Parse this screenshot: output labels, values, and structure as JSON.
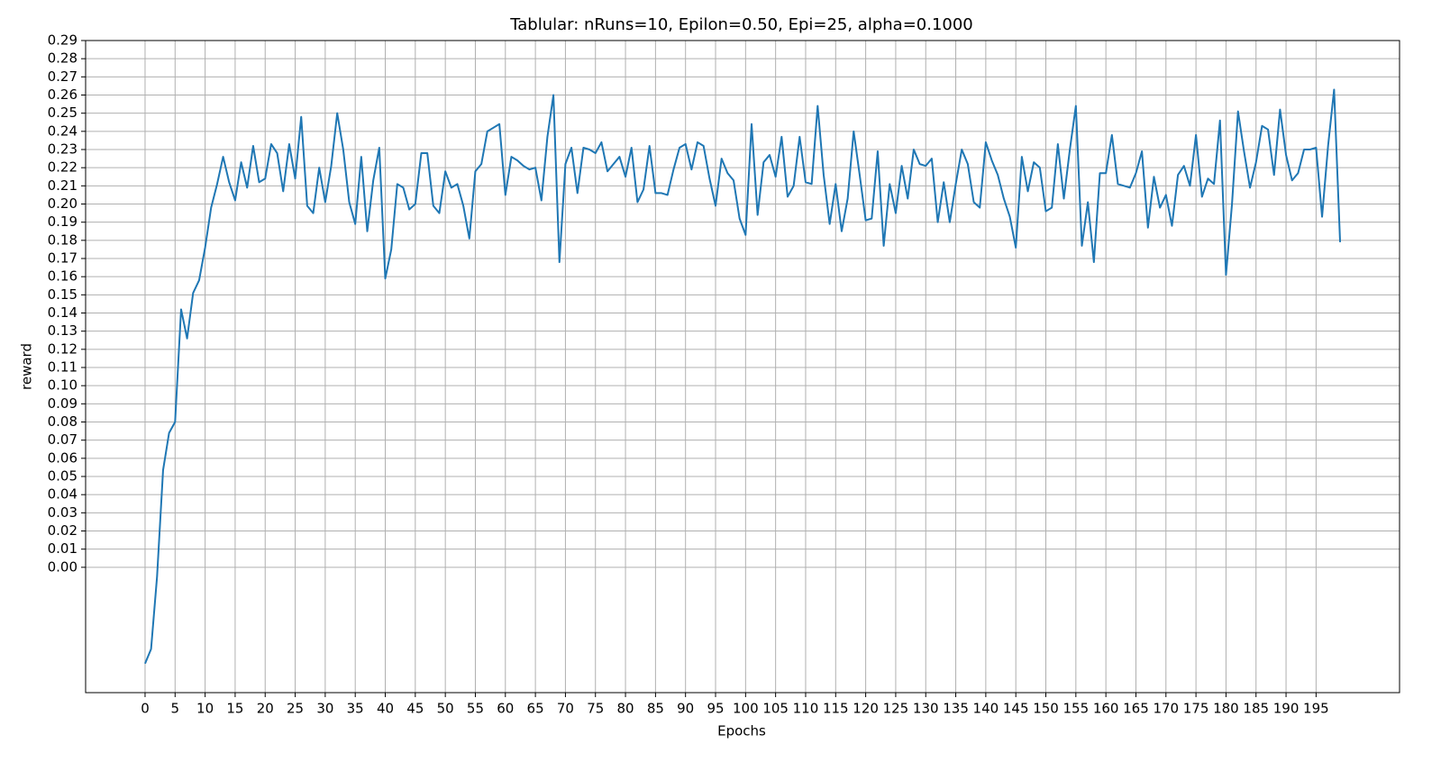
{
  "chart_data": {
    "type": "line",
    "title": "Tablular: nRuns=10, Epilon=0.50, Epi=25, alpha=0.1000",
    "xlabel": "Epochs",
    "ylabel": "reward",
    "color": "#1f77b4",
    "grid": true,
    "xlim": [
      -9.9,
      208.9
    ],
    "ylim": [
      -0.069,
      0.29
    ],
    "xticks": [
      0,
      5,
      10,
      15,
      20,
      25,
      30,
      35,
      40,
      45,
      50,
      55,
      60,
      65,
      70,
      75,
      80,
      85,
      90,
      95,
      100,
      105,
      110,
      115,
      120,
      125,
      130,
      135,
      140,
      145,
      150,
      155,
      160,
      165,
      170,
      175,
      180,
      185,
      190,
      195
    ],
    "yticks": [
      {
        "value": 0,
        "label": "0.00"
      },
      0.01,
      0.02,
      0.03,
      0.04,
      0.05,
      0.06,
      0.07,
      0.08,
      0.09,
      {
        "value": 0.1,
        "label": "0.10"
      },
      0.11,
      0.12,
      0.13,
      0.14,
      0.15,
      0.16,
      0.17,
      0.18,
      0.19,
      {
        "value": 0.2,
        "label": "0.20"
      },
      0.21,
      0.22,
      0.23,
      0.24,
      0.25,
      0.26,
      0.27,
      0.28,
      0.29
    ],
    "x": [
      0,
      1,
      2,
      3,
      4,
      5,
      6,
      7,
      8,
      9,
      10,
      11,
      12,
      13,
      14,
      15,
      16,
      17,
      18,
      19,
      20,
      21,
      22,
      23,
      24,
      25,
      26,
      27,
      28,
      29,
      30,
      31,
      32,
      33,
      34,
      35,
      36,
      37,
      38,
      39,
      40,
      41,
      42,
      43,
      44,
      45,
      46,
      47,
      48,
      49,
      50,
      51,
      52,
      53,
      54,
      55,
      56,
      57,
      58,
      59,
      60,
      61,
      62,
      63,
      64,
      65,
      66,
      67,
      68,
      69,
      70,
      71,
      72,
      73,
      74,
      75,
      76,
      77,
      78,
      79,
      80,
      81,
      82,
      83,
      84,
      85,
      86,
      87,
      88,
      89,
      90,
      91,
      92,
      93,
      94,
      95,
      96,
      97,
      98,
      99,
      100,
      101,
      102,
      103,
      104,
      105,
      106,
      107,
      108,
      109,
      110,
      111,
      112,
      113,
      114,
      115,
      116,
      117,
      118,
      119,
      120,
      121,
      122,
      123,
      124,
      125,
      126,
      127,
      128,
      129,
      130,
      131,
      132,
      133,
      134,
      135,
      136,
      137,
      138,
      139,
      140,
      141,
      142,
      143,
      144,
      145,
      146,
      147,
      148,
      149,
      150,
      151,
      152,
      153,
      154,
      155,
      156,
      157,
      158,
      159,
      160,
      161,
      162,
      163,
      164,
      165,
      166,
      167,
      168,
      169,
      170,
      171,
      172,
      173,
      174,
      175,
      176,
      177,
      178,
      179,
      180,
      181,
      182,
      183,
      184,
      185,
      186,
      187,
      188,
      189,
      190,
      191,
      192,
      193,
      194,
      195,
      196,
      197,
      198,
      199
    ],
    "values": [
      -0.053,
      -0.045,
      -0.005,
      0.0535,
      0.074,
      0.08,
      0.142,
      0.126,
      0.151,
      0.158,
      0.176,
      0.198,
      0.211,
      0.226,
      0.212,
      0.202,
      0.223,
      0.209,
      0.232,
      0.212,
      0.214,
      0.233,
      0.228,
      0.207,
      0.233,
      0.214,
      0.248,
      0.199,
      0.195,
      0.22,
      0.201,
      0.221,
      0.25,
      0.23,
      0.201,
      0.189,
      0.226,
      0.185,
      0.213,
      0.231,
      0.159,
      0.175,
      0.211,
      0.209,
      0.197,
      0.2,
      0.228,
      0.228,
      0.199,
      0.195,
      0.218,
      0.209,
      0.211,
      0.199,
      0.181,
      0.218,
      0.222,
      0.24,
      0.242,
      0.244,
      0.205,
      0.226,
      0.224,
      0.221,
      0.219,
      0.22,
      0.202,
      0.237,
      0.26,
      0.168,
      0.222,
      0.231,
      0.206,
      0.231,
      0.23,
      0.228,
      0.234,
      0.218,
      0.222,
      0.226,
      0.215,
      0.231,
      0.201,
      0.208,
      0.232,
      0.206,
      0.206,
      0.205,
      0.219,
      0.231,
      0.233,
      0.219,
      0.234,
      0.232,
      0.214,
      0.199,
      0.225,
      0.217,
      0.213,
      0.192,
      0.183,
      0.244,
      0.194,
      0.223,
      0.227,
      0.215,
      0.237,
      0.204,
      0.21,
      0.237,
      0.212,
      0.211,
      0.254,
      0.216,
      0.189,
      0.211,
      0.185,
      0.203,
      0.24,
      0.216,
      0.191,
      0.192,
      0.229,
      0.177,
      0.211,
      0.195,
      0.221,
      0.203,
      0.23,
      0.222,
      0.221,
      0.225,
      0.19,
      0.212,
      0.19,
      0.211,
      0.23,
      0.222,
      0.201,
      0.198,
      0.234,
      0.224,
      0.216,
      0.203,
      0.193,
      0.176,
      0.226,
      0.207,
      0.223,
      0.22,
      0.196,
      0.198,
      0.233,
      0.203,
      0.23,
      0.254,
      0.177,
      0.201,
      0.168,
      0.217,
      0.217,
      0.238,
      0.211,
      0.21,
      0.209,
      0.217,
      0.229,
      0.187,
      0.215,
      0.198,
      0.205,
      0.188,
      0.216,
      0.221,
      0.21,
      0.238,
      0.204,
      0.214,
      0.211,
      0.246,
      0.161,
      0.2,
      0.251,
      0.229,
      0.209,
      0.223,
      0.243,
      0.241,
      0.216,
      0.252,
      0.227,
      0.213,
      0.217,
      0.23,
      0.23,
      0.231,
      0.193,
      0.232,
      0.263,
      0.179
    ]
  }
}
